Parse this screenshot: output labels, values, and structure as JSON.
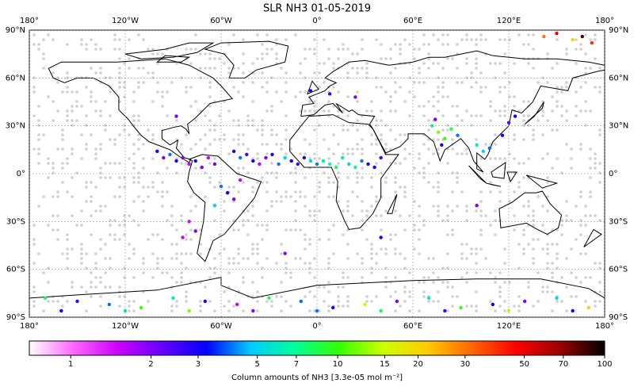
{
  "map": {
    "title": "SLR NH3 01-05-2019",
    "lonlim": [
      -180,
      180
    ],
    "latlim": [
      -90,
      90
    ],
    "lonticks": [
      {
        "value": -180,
        "label": "180°"
      },
      {
        "value": -120,
        "label": "120°W"
      },
      {
        "value": -60,
        "label": "60°W"
      },
      {
        "value": 0,
        "label": "0°"
      },
      {
        "value": 60,
        "label": "60°E"
      },
      {
        "value": 120,
        "label": "120°E"
      },
      {
        "value": 180,
        "label": "180°"
      }
    ],
    "latticks": [
      {
        "value": 90,
        "label": "90°N"
      },
      {
        "value": 60,
        "label": "60°N"
      },
      {
        "value": 30,
        "label": "30°N"
      },
      {
        "value": 0,
        "label": "0°"
      },
      {
        "value": -30,
        "label": "30°S"
      },
      {
        "value": -60,
        "label": "60°S"
      },
      {
        "value": -90,
        "label": "90°S"
      }
    ],
    "grid": true,
    "colorbar": {
      "label": "Column amounts of NH3 [3.3e-05 mol m⁻²]",
      "lim": [
        0.7,
        100
      ],
      "log": true,
      "ticks": [
        1,
        2,
        3,
        5,
        7,
        10,
        15,
        20,
        30,
        50,
        70,
        100
      ],
      "colors": [
        "#ffffff",
        "#ff66ff",
        "#cc00ff",
        "#6600ff",
        "#0000ff",
        "#00ccff",
        "#00ff99",
        "#33ff00",
        "#ccff00",
        "#ffcc00",
        "#ff6600",
        "#ff0000",
        "#990000",
        "#000000"
      ]
    },
    "points": {
      "lon": [
        -100,
        -96,
        -92,
        -88,
        -84,
        -80,
        -76,
        -72,
        -68,
        -64,
        -52,
        -48,
        -44,
        -40,
        -36,
        -32,
        -28,
        -24,
        -20,
        -16,
        -12,
        -8,
        -4,
        0,
        4,
        8,
        12,
        16,
        20,
        24,
        28,
        32,
        36,
        40,
        72,
        76,
        80,
        84,
        88,
        78,
        74,
        100,
        104,
        108,
        116,
        120,
        124,
        -60,
        -56,
        -52,
        -48,
        -64,
        -76,
        -84,
        -88,
        -4,
        8,
        24,
        -170,
        -150,
        -130,
        -110,
        -90,
        -70,
        -50,
        -30,
        -10,
        10,
        30,
        50,
        70,
        90,
        110,
        130,
        150,
        170,
        -160,
        -120,
        -80,
        -40,
        0,
        40,
        80,
        120,
        160,
        142,
        150,
        160,
        166,
        -80,
        -20,
        40,
        100,
        172
      ],
      "lat": [
        14,
        10,
        12,
        8,
        10,
        6,
        8,
        4,
        10,
        6,
        14,
        10,
        12,
        8,
        6,
        10,
        12,
        6,
        10,
        8,
        6,
        10,
        8,
        6,
        8,
        6,
        4,
        10,
        6,
        4,
        8,
        6,
        4,
        10,
        30,
        26,
        22,
        28,
        24,
        18,
        34,
        18,
        14,
        16,
        24,
        32,
        36,
        -8,
        -12,
        -16,
        -4,
        -20,
        -36,
        -40,
        36,
        52,
        50,
        48,
        -78,
        -80,
        -82,
        -84,
        -78,
        -80,
        -82,
        -78,
        -80,
        -84,
        -82,
        -80,
        -78,
        -84,
        -82,
        -80,
        -78,
        -84,
        -86,
        -86,
        -86,
        -86,
        -86,
        -86,
        -86,
        -86,
        -86,
        86,
        88,
        84,
        86,
        -30,
        -50,
        -40,
        -20,
        82
      ],
      "values": [
        3,
        2,
        4,
        3,
        2,
        1.5,
        3,
        2,
        1.5,
        2,
        3,
        4,
        2.5,
        3,
        1.5,
        2,
        3,
        4,
        5,
        3,
        2.5,
        3,
        5,
        4,
        6,
        7,
        8,
        6,
        5,
        7,
        4,
        3,
        3,
        2.5,
        7,
        12,
        10,
        8,
        4,
        3,
        2,
        6,
        5,
        4,
        3,
        2.5,
        3,
        4,
        3,
        2,
        1.5,
        5,
        2,
        1.5,
        2,
        3,
        2.5,
        2,
        8,
        2.5,
        4,
        10,
        6,
        3,
        1.5,
        8,
        4,
        3,
        15,
        2,
        6,
        10,
        3,
        2,
        5,
        20,
        3,
        6,
        12,
        2,
        4,
        8,
        2.5,
        15,
        3,
        30,
        50,
        20,
        80,
        1.5,
        2,
        3,
        2,
        40
      ]
    }
  }
}
